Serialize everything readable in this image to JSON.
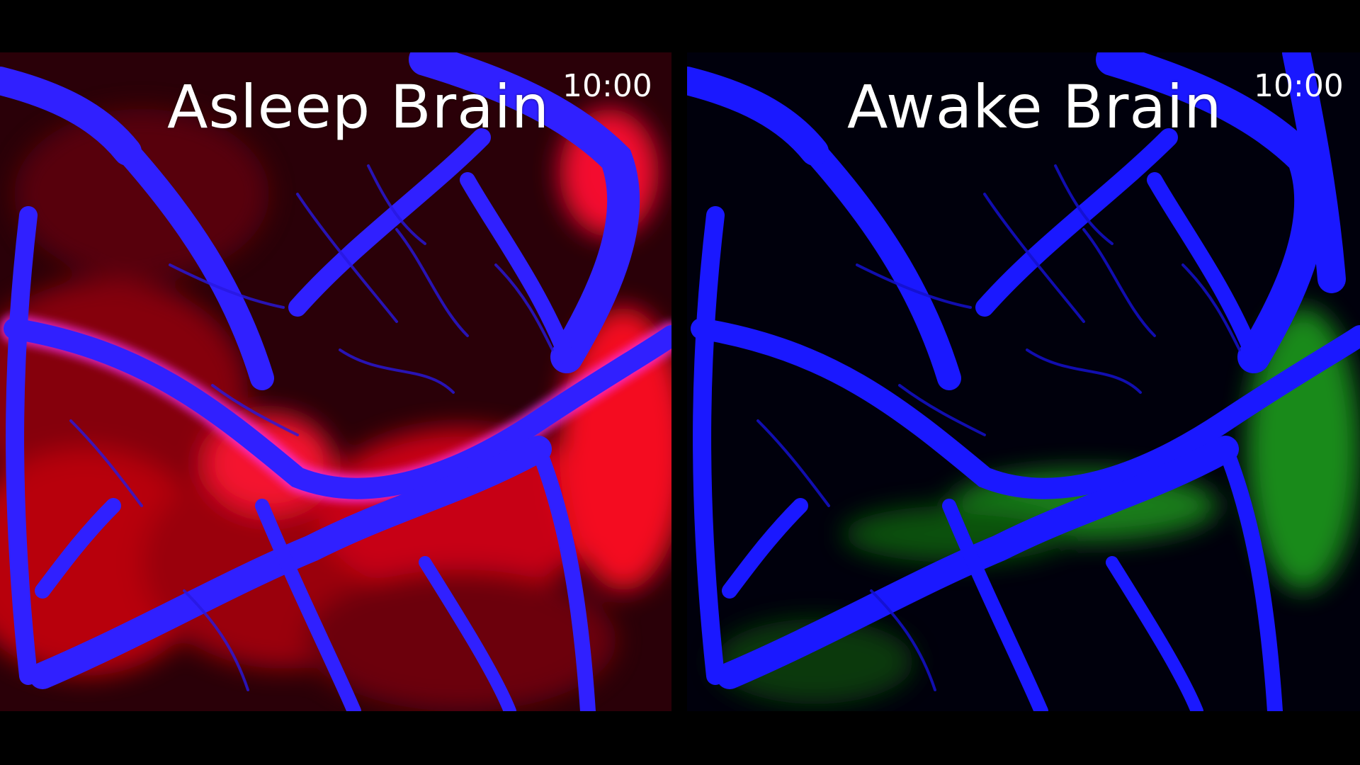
{
  "panels": [
    {
      "title": "Asleep Brain",
      "timestamp": "10:00",
      "overlay_color": "#ff1010",
      "vessel_color": "#2a1aff"
    },
    {
      "title": "Awake Brain",
      "timestamp": "10:00",
      "overlay_color": "#1fb81f",
      "vessel_color": "#1a18ff"
    }
  ]
}
